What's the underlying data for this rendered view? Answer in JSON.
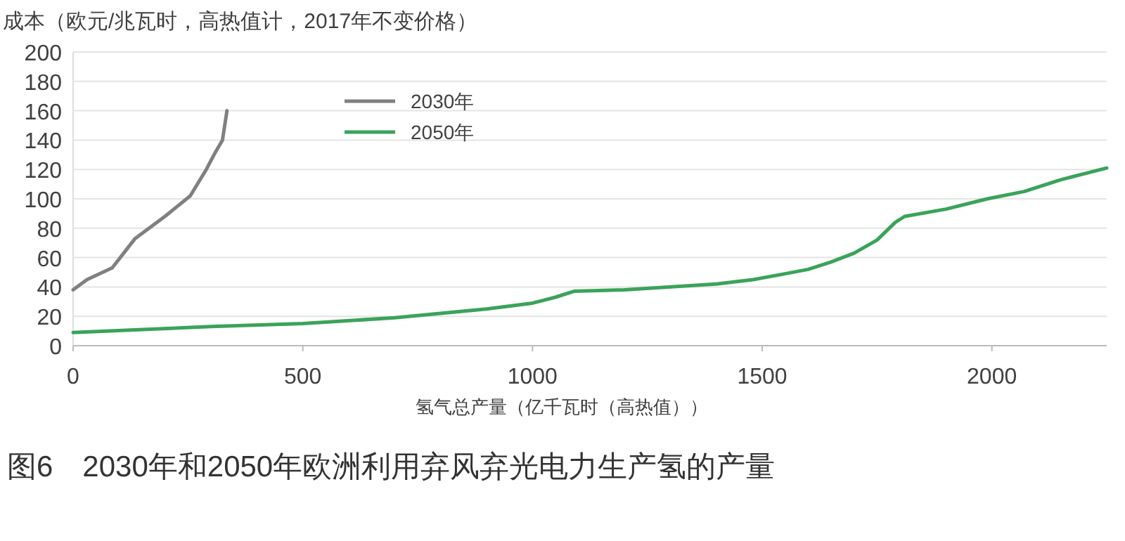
{
  "chart_data": {
    "type": "line",
    "title": "图6　2030年和2050年欧洲利用弃风弃光电力生产氢的产量",
    "xlabel": "氢气总产量（亿千瓦时（高热值））",
    "ylabel": "成本（欧元/兆瓦时，高热值计，2017年不变价格）",
    "xlim": [
      0,
      2250
    ],
    "xticks": [
      0,
      500,
      1000,
      1500,
      2000
    ],
    "ylim": [
      0,
      200
    ],
    "yticks": [
      0,
      20,
      40,
      60,
      80,
      100,
      120,
      140,
      160,
      180,
      200
    ],
    "grid": "y",
    "legend": "top left",
    "marker": "none",
    "line_style": "solid",
    "series": [
      {
        "name": "2030年",
        "color": "#808080",
        "x": [
          0,
          30,
          85,
          135,
          200,
          255,
          290,
          310,
          325,
          335
        ],
        "values": [
          38,
          45,
          53,
          73,
          88,
          102,
          120,
          132,
          140,
          160
        ]
      },
      {
        "name": "2050年",
        "color": "#3aa35a",
        "x": [
          0,
          300,
          500,
          700,
          900,
          1000,
          1050,
          1090,
          1200,
          1400,
          1480,
          1550,
          1600,
          1650,
          1700,
          1750,
          1790,
          1810,
          1900,
          1990,
          2070,
          2150,
          2250
        ],
        "values": [
          9,
          13,
          15,
          19,
          25,
          29,
          33,
          37,
          38,
          42,
          45,
          49,
          52,
          57,
          63,
          72,
          84,
          88,
          93,
          100,
          105,
          113,
          121
        ]
      }
    ]
  }
}
